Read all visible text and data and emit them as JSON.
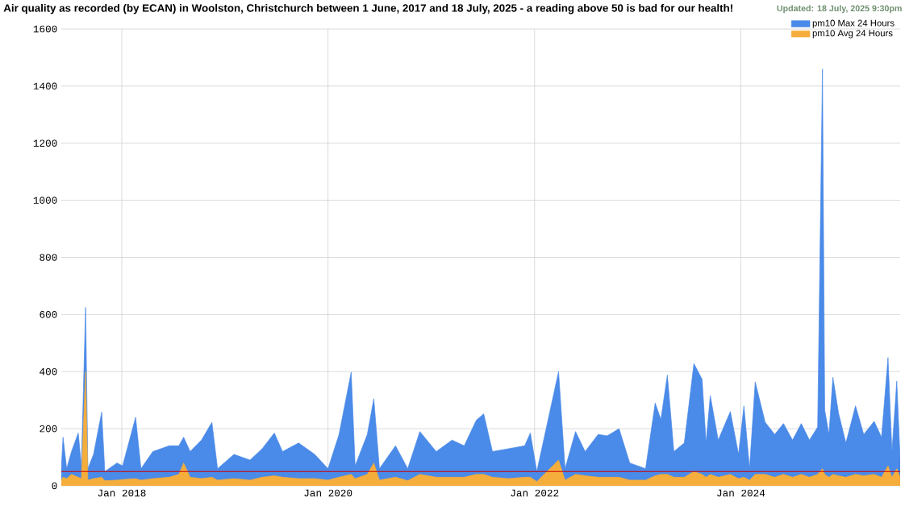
{
  "chart_data": {
    "type": "area",
    "title": "Air quality as recorded (by ECAN) in Woolston, Christchurch between 1 June, 2017 and 18 July, 2025 - a reading above 50 is bad for our health!",
    "annotations": [
      "Updated: 18 July, 2025 9:30pm"
    ],
    "x": [
      "2017-06-01",
      "2017-06-07",
      "2017-06-20",
      "2017-07-07",
      "2017-07-31",
      "2017-08-11",
      "2017-08-26",
      "2017-09-03",
      "2017-09-23",
      "2017-10-22",
      "2017-11-02",
      "2017-12-15",
      "2018-01-04",
      "2018-02-19",
      "2018-03-10",
      "2018-04-21",
      "2018-06-18",
      "2018-07-22",
      "2018-08-08",
      "2018-08-31",
      "2018-10-10",
      "2018-11-16",
      "2018-12-06",
      "2019-02-02",
      "2019-03-31",
      "2019-05-13",
      "2019-06-25",
      "2019-07-24",
      "2019-09-19",
      "2019-11-15",
      "2020-01-01",
      "2020-02-09",
      "2020-03-23",
      "2020-04-06",
      "2020-05-19",
      "2020-06-11",
      "2020-07-01",
      "2020-08-27",
      "2020-10-09",
      "2020-11-21",
      "2021-01-18",
      "2021-03-15",
      "2021-04-27",
      "2021-06-09",
      "2021-07-05",
      "2021-08-05",
      "2021-10-01",
      "2021-11-27",
      "2021-12-17",
      "2022-01-09",
      "2022-03-27",
      "2022-04-19",
      "2022-05-26",
      "2022-06-29",
      "2022-08-14",
      "2022-09-15",
      "2022-10-27",
      "2022-12-04",
      "2023-01-29",
      "2023-03-04",
      "2023-03-24",
      "2023-04-16",
      "2023-05-09",
      "2023-06-15",
      "2023-07-19",
      "2023-08-17",
      "2023-08-31",
      "2023-09-15",
      "2023-10-13",
      "2023-11-25",
      "2023-12-24",
      "2024-01-12",
      "2024-02-01",
      "2024-02-21",
      "2024-03-27",
      "2024-04-30",
      "2024-05-31",
      "2024-07-02",
      "2024-08-02",
      "2024-08-31",
      "2024-09-29",
      "2024-10-16",
      "2024-10-24",
      "2024-11-08",
      "2024-11-22",
      "2024-12-12",
      "2025-01-07",
      "2025-02-10",
      "2025-03-11",
      "2025-04-17",
      "2025-05-13",
      "2025-06-05",
      "2025-06-19",
      "2025-07-06",
      "2025-07-18"
    ],
    "series": [
      {
        "name": "pm10 Max 24 Hours",
        "color": "#4a8ae8",
        "values": [
          60,
          170,
          60,
          120,
          185,
          70,
          625,
          60,
          110,
          258,
          50,
          80,
          70,
          240,
          60,
          120,
          140,
          140,
          170,
          120,
          160,
          222,
          60,
          110,
          90,
          130,
          185,
          120,
          150,
          110,
          60,
          180,
          398,
          70,
          180,
          305,
          60,
          140,
          60,
          190,
          120,
          160,
          140,
          230,
          252,
          120,
          130,
          140,
          185,
          50,
          400,
          60,
          190,
          120,
          180,
          175,
          200,
          80,
          60,
          290,
          232,
          388,
          120,
          150,
          428,
          373,
          150,
          316,
          160,
          260,
          110,
          280,
          60,
          364,
          223,
          180,
          218,
          160,
          218,
          160,
          206,
          1460,
          265,
          180,
          380,
          254,
          150,
          280,
          180,
          226,
          170,
          449,
          120,
          367,
          90
        ]
      },
      {
        "name": "pm10 Avg 24 Hours",
        "color": "#f5ad3c",
        "values": [
          20,
          30,
          25,
          40,
          30,
          25,
          400,
          20,
          25,
          30,
          18,
          20,
          22,
          25,
          20,
          25,
          30,
          40,
          80,
          30,
          25,
          30,
          20,
          25,
          20,
          30,
          35,
          30,
          25,
          25,
          20,
          30,
          40,
          25,
          40,
          80,
          20,
          30,
          18,
          40,
          30,
          30,
          30,
          40,
          40,
          30,
          25,
          30,
          30,
          15,
          90,
          20,
          40,
          35,
          30,
          30,
          30,
          20,
          20,
          35,
          40,
          40,
          30,
          30,
          50,
          40,
          30,
          40,
          30,
          40,
          25,
          30,
          20,
          40,
          40,
          30,
          40,
          30,
          40,
          30,
          40,
          60,
          40,
          30,
          40,
          35,
          30,
          40,
          35,
          40,
          30,
          70,
          30,
          60,
          30
        ]
      }
    ],
    "xlim": [
      "2017-06-01",
      "2025-07-18"
    ],
    "xticks": [
      {
        "value": "2018-01-01",
        "label": "Jan 2018"
      },
      {
        "value": "2020-01-01",
        "label": "Jan 2020"
      },
      {
        "value": "2022-01-01",
        "label": "Jan 2022"
      },
      {
        "value": "2024-01-01",
        "label": "Jan 2024"
      }
    ],
    "ylim": [
      0,
      1600
    ],
    "yticks": [
      0,
      200,
      400,
      600,
      800,
      1000,
      1200,
      1400,
      1600
    ],
    "ref_lines": [
      {
        "axis": "y",
        "value": 50,
        "color": "#cc0000"
      }
    ],
    "grid": true,
    "legend": "top right"
  }
}
